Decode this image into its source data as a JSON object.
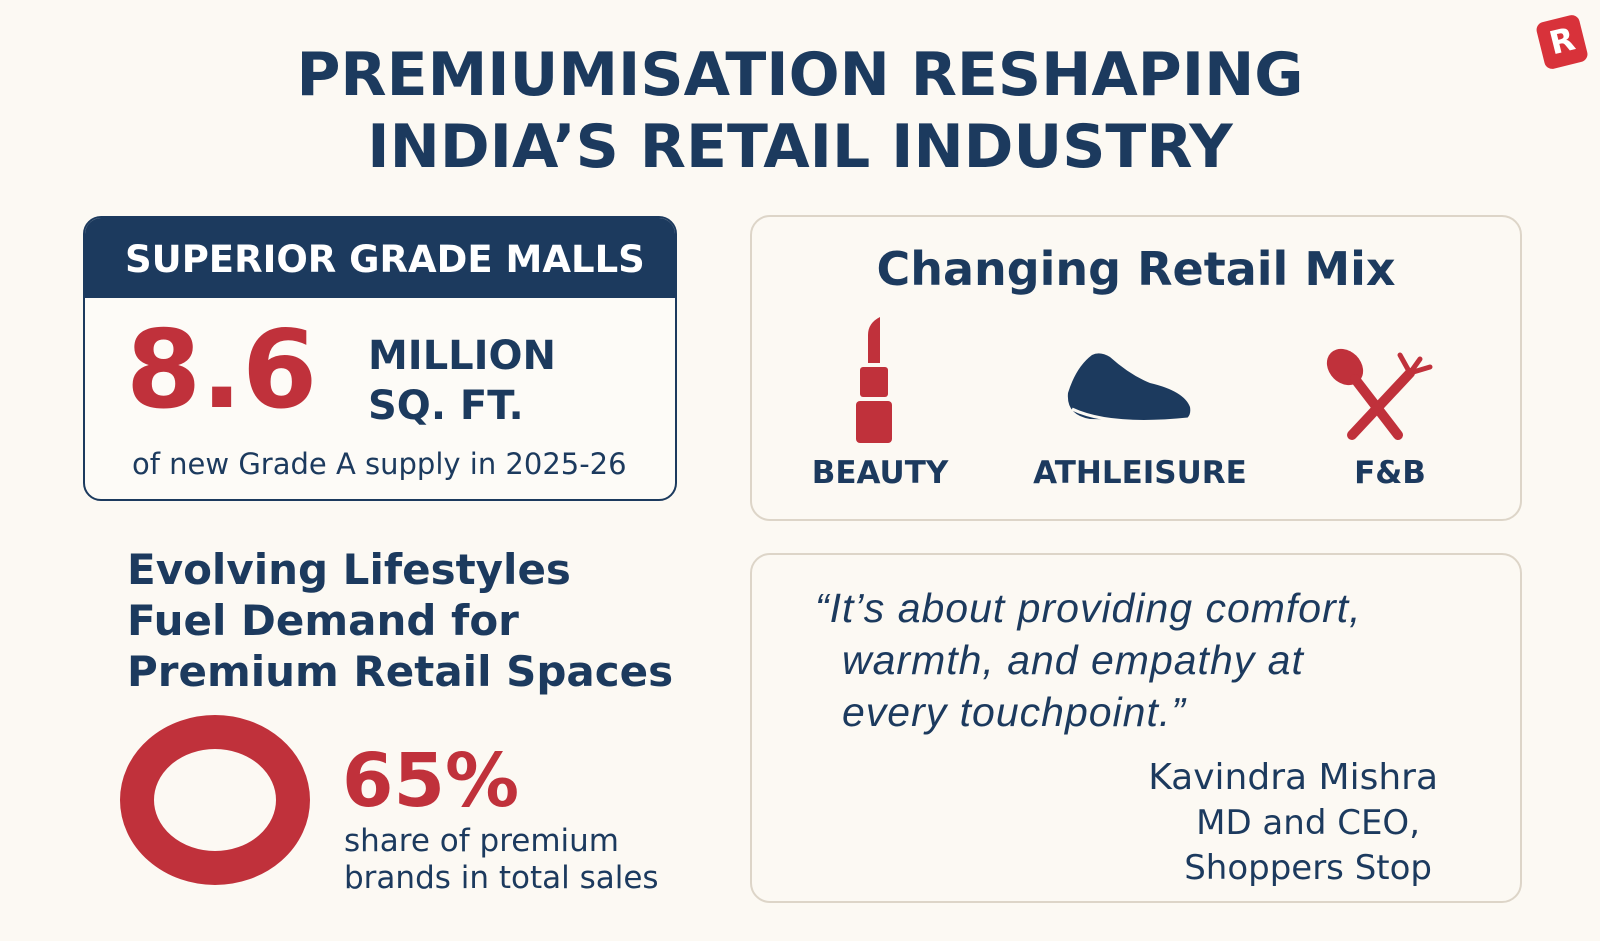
{
  "header": {
    "title_lines": [
      "PREMIUMISATION RESHAPING",
      "INDIA’S RETAIL INDUSTRY"
    ],
    "logo": "R"
  },
  "malls_card": {
    "heading": "SUPERIOR GRADE MALLS",
    "figure": "8.6",
    "unit_lines": [
      "MILLION",
      "SQ. FT."
    ],
    "caption": "of new Grade A supply in 2025-26"
  },
  "retail_mix": {
    "heading": "Changing Retail Mix",
    "items": [
      "BEAUTY",
      "ATHLEISURE",
      "F&B"
    ]
  },
  "lifestyles": {
    "heading_lines": [
      "Evolving Lifestyles",
      "Fuel Demand for",
      "Premium Retail Spaces"
    ],
    "figure": "65%",
    "caption_lines": [
      "share of premium",
      "brands in total sales"
    ]
  },
  "quote": {
    "lines": [
      "“It’s about providing comfort,",
      "warmth, and empathy at",
      "every touchpoint.”"
    ],
    "speaker": "Kavindra Mishra",
    "role_lines": [
      "MD and CEO,",
      "Shoppers Stop"
    ]
  }
}
